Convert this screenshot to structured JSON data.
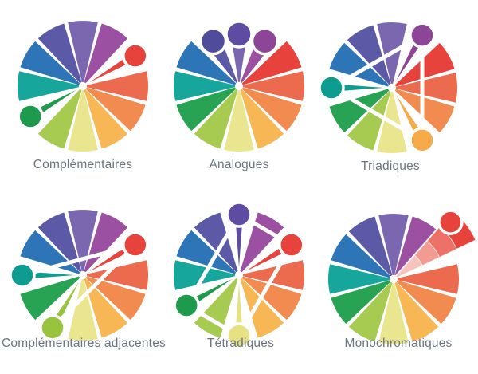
{
  "page": {
    "background": "#ffffff",
    "label_color": "#6a7580"
  },
  "palette": [
    {
      "name": "violet",
      "color": "#7a67b0",
      "accent": "#5d4ca1"
    },
    {
      "name": "plum",
      "color": "#9c50a2",
      "accent": "#8c4597"
    },
    {
      "name": "red",
      "color": "#e8423d",
      "accent": "#e8423d"
    },
    {
      "name": "coral",
      "color": "#ec6a4e",
      "accent": "#ec6a4e"
    },
    {
      "name": "orange",
      "color": "#f28b4f",
      "accent": "#f28b4f"
    },
    {
      "name": "amber",
      "color": "#f8b755",
      "accent": "#f5ab49"
    },
    {
      "name": "pale-yellow",
      "color": "#e9e68f",
      "accent": "#e6e182"
    },
    {
      "name": "lime",
      "color": "#a6cb50",
      "accent": "#97c33f"
    },
    {
      "name": "green",
      "color": "#27a353",
      "accent": "#1e9a4d"
    },
    {
      "name": "teal",
      "color": "#17a69b",
      "accent": "#0e9c91"
    },
    {
      "name": "blue",
      "color": "#2e75b8",
      "accent": "#2e75b8"
    },
    {
      "name": "indigo",
      "color": "#5c5aa7",
      "accent": "#514c99"
    }
  ],
  "wheels": [
    {
      "id": "complementaires",
      "label": "Complémentaires",
      "scheme": "pins",
      "pins": [
        2,
        8
      ],
      "lines": []
    },
    {
      "id": "analogues",
      "label": "Analogues",
      "scheme": "dots",
      "dots": [
        11,
        0,
        1
      ]
    },
    {
      "id": "triadiques",
      "label": "Triadiques",
      "scheme": "pins",
      "pins": [
        1,
        5,
        9
      ],
      "lines": [
        [
          1,
          5
        ],
        [
          5,
          9
        ],
        [
          9,
          1
        ]
      ]
    },
    {
      "id": "complementaires-adjacentes",
      "label": "Complémentaires adjacentes",
      "scheme": "pins",
      "pins": [
        2,
        7,
        9
      ],
      "lines": [
        [
          2,
          9
        ],
        [
          2,
          7
        ]
      ]
    },
    {
      "id": "tetradiques",
      "label": "Tétradiques",
      "scheme": "pins",
      "pins": [
        0,
        2,
        6,
        8
      ],
      "lines": [
        [
          0,
          2
        ],
        [
          2,
          6
        ],
        [
          6,
          8
        ],
        [
          8,
          0
        ]
      ]
    },
    {
      "id": "monochromatiques",
      "label": "Monochromatiques",
      "scheme": "pullout",
      "pullout": {
        "segment": 2,
        "shades": [
          "#f6c4bc",
          "#f19b91",
          "#ed7166",
          "#e8423d"
        ]
      }
    }
  ]
}
